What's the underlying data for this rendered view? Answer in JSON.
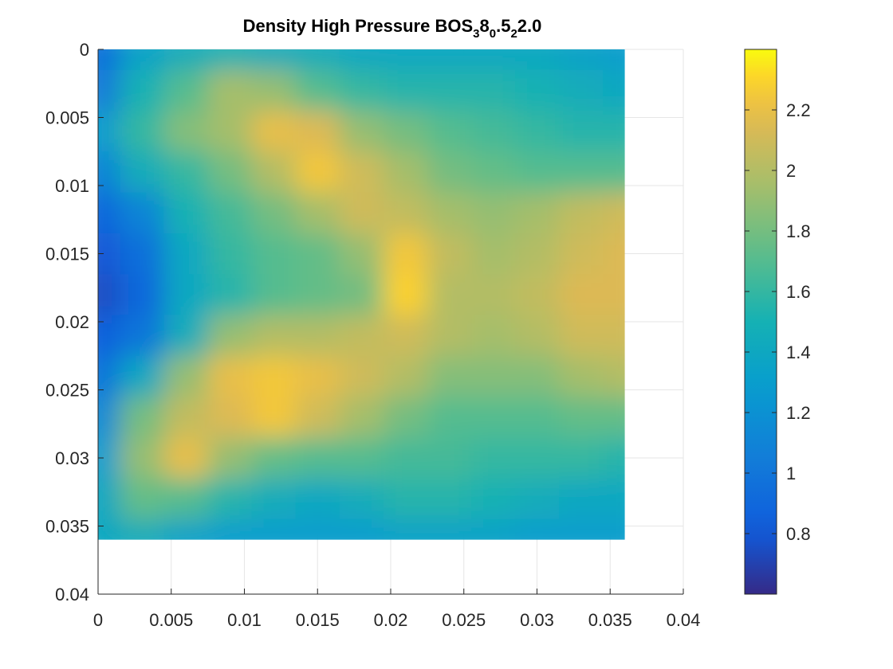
{
  "chart_data": {
    "type": "heatmap",
    "title": {
      "parts": [
        {
          "text": "Density High Pressure BOS",
          "sub": false
        },
        {
          "text": "3",
          "sub": true
        },
        {
          "text": "8",
          "sub": false
        },
        {
          "text": "0",
          "sub": true
        },
        {
          "text": ".5",
          "sub": false
        },
        {
          "text": "2",
          "sub": true
        },
        {
          "text": "2.0",
          "sub": false
        }
      ]
    },
    "xlabel": "",
    "ylabel": "",
    "xlim": [
      0,
      0.04
    ],
    "ylim": [
      0,
      0.04
    ],
    "y_direction": "reversed",
    "xticks": [
      "0",
      "0.005",
      "0.01",
      "0.015",
      "0.02",
      "0.025",
      "0.03",
      "0.035",
      "0.04"
    ],
    "yticks": [
      "0",
      "0.005",
      "0.01",
      "0.015",
      "0.02",
      "0.025",
      "0.03",
      "0.035",
      "0.04"
    ],
    "grid": true,
    "data_extent": {
      "x": [
        0,
        0.036
      ],
      "y": [
        0,
        0.036
      ]
    },
    "colormap": "parula",
    "colorbar": {
      "range": [
        0.6,
        2.4
      ],
      "ticks": [
        "0.8",
        "1",
        "1.2",
        "1.4",
        "1.6",
        "1.8",
        "2",
        "2.2"
      ],
      "location": "right"
    },
    "grid_x": [
      0,
      0.003,
      0.006,
      0.009,
      0.012,
      0.015,
      0.018,
      0.021,
      0.024,
      0.027,
      0.03,
      0.033,
      0.036
    ],
    "grid_y": [
      0,
      0.003,
      0.006,
      0.009,
      0.012,
      0.015,
      0.018,
      0.021,
      0.024,
      0.027,
      0.03,
      0.033,
      0.036
    ],
    "values": [
      [
        0.95,
        1.35,
        1.45,
        1.5,
        1.45,
        1.45,
        1.4,
        1.4,
        1.4,
        1.4,
        1.4,
        1.35,
        1.3
      ],
      [
        1.05,
        1.5,
        1.7,
        1.95,
        1.9,
        1.7,
        1.6,
        1.55,
        1.55,
        1.55,
        1.5,
        1.45,
        1.4
      ],
      [
        1.3,
        1.6,
        1.85,
        1.95,
        2.2,
        2.15,
        1.9,
        1.8,
        1.7,
        1.65,
        1.6,
        1.55,
        1.55
      ],
      [
        1.1,
        1.45,
        1.6,
        1.8,
        2.0,
        2.25,
        2.1,
        1.95,
        1.8,
        1.75,
        1.7,
        1.7,
        1.7
      ],
      [
        0.9,
        1.1,
        1.5,
        1.65,
        1.8,
        1.95,
        2.1,
        2.05,
        1.95,
        1.9,
        1.95,
        2.05,
        2.1
      ],
      [
        0.8,
        0.95,
        1.4,
        1.6,
        1.7,
        1.75,
        1.9,
        2.25,
        2.05,
        1.95,
        2.0,
        2.1,
        2.15
      ],
      [
        0.75,
        0.9,
        1.4,
        1.55,
        1.7,
        1.75,
        1.8,
        2.3,
        2.0,
        2.0,
        2.05,
        2.15,
        2.15
      ],
      [
        0.85,
        1.0,
        1.45,
        1.9,
        2.0,
        2.0,
        2.05,
        2.1,
        2.0,
        1.95,
        2.0,
        2.1,
        2.1
      ],
      [
        1.0,
        1.4,
        1.9,
        2.2,
        2.25,
        2.2,
        2.1,
        2.0,
        1.85,
        1.85,
        1.85,
        1.95,
        2.0
      ],
      [
        1.15,
        1.8,
        2.05,
        2.15,
        2.25,
        2.1,
        1.95,
        1.8,
        1.7,
        1.7,
        1.7,
        1.75,
        1.75
      ],
      [
        1.3,
        1.9,
        2.2,
        1.9,
        1.75,
        1.7,
        1.7,
        1.65,
        1.65,
        1.6,
        1.6,
        1.6,
        1.55
      ],
      [
        1.4,
        1.75,
        1.7,
        1.55,
        1.45,
        1.4,
        1.45,
        1.55,
        1.55,
        1.5,
        1.45,
        1.4,
        1.4
      ],
      [
        1.4,
        1.45,
        1.35,
        1.3,
        1.3,
        1.3,
        1.3,
        1.35,
        1.35,
        1.35,
        1.3,
        1.3,
        1.3
      ]
    ]
  }
}
